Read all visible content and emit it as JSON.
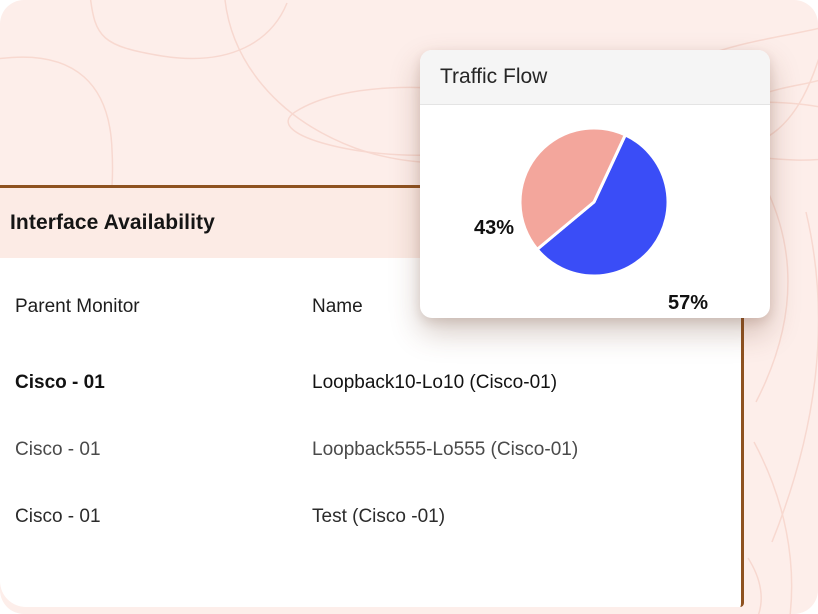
{
  "page": {
    "background_color": "#fdeeea",
    "contour_color": "#f7d5cc",
    "frame_color": "#8e5220"
  },
  "traffic_card": {
    "title": "Traffic Flow"
  },
  "chart_data": {
    "type": "pie",
    "title": "Traffic Flow",
    "slices": [
      {
        "label": "57%",
        "value": 57,
        "color": "#3a4df7"
      },
      {
        "label": "43%",
        "value": 43,
        "color": "#f3a69c"
      }
    ],
    "start_angle_deg": 25,
    "gap_color": "#ffffff",
    "legend": "none",
    "labels_position": "outside"
  },
  "table": {
    "title": "Interface Availability",
    "columns": [
      "Parent Monitor",
      "Name"
    ],
    "rows": [
      {
        "parent_monitor": "Cisco - 01",
        "name": "Loopback10-Lo10 (Cisco-01)"
      },
      {
        "parent_monitor": "Cisco - 01",
        "name": "Loopback555-Lo555 (Cisco-01)"
      },
      {
        "parent_monitor": "Cisco - 01",
        "name": "Test (Cisco -01)"
      }
    ]
  }
}
